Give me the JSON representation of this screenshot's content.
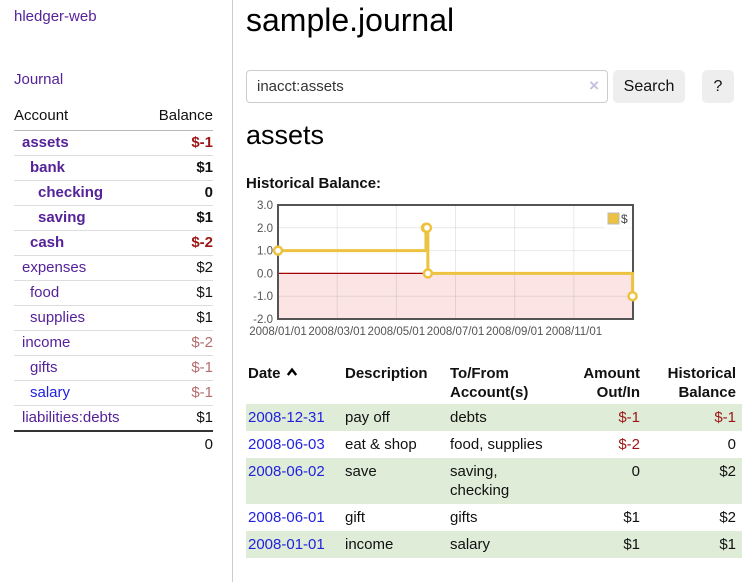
{
  "colors": {
    "purple": "#552299",
    "blue": "#2222dd",
    "negStrong": "#9d1616",
    "negMuted": "#b56c6c",
    "rowGreen": "#deecd8",
    "accent": "#edc240"
  },
  "sidebar": {
    "brand": "hledger-web",
    "journal_link": "Journal",
    "accounts_table": {
      "account_header": "Account",
      "balance_header": "Balance",
      "rows": [
        {
          "account": "assets",
          "level": 1,
          "bold": true,
          "link_color": "purple",
          "balance": "$-1",
          "balance_class": "neg bold"
        },
        {
          "account": "bank",
          "level": 2,
          "bold": true,
          "link_color": "purple",
          "balance": "$1",
          "balance_class": "bold"
        },
        {
          "account": "checking",
          "level": 3,
          "bold": true,
          "link_color": "purple",
          "balance": "0",
          "balance_class": "bold"
        },
        {
          "account": "saving",
          "level": 3,
          "bold": true,
          "link_color": "purple",
          "balance": "$1",
          "balance_class": "bold"
        },
        {
          "account": "cash",
          "level": 2,
          "bold": true,
          "link_color": "purple",
          "balance": "$-2",
          "balance_class": "neg bold"
        },
        {
          "account": "expenses",
          "level": 1,
          "bold": false,
          "link_color": "purple",
          "balance": "$2",
          "balance_class": ""
        },
        {
          "account": "food",
          "level": 2,
          "bold": false,
          "link_color": "purple",
          "balance": "$1",
          "balance_class": ""
        },
        {
          "account": "supplies",
          "level": 2,
          "bold": false,
          "link_color": "purple",
          "balance": "$1",
          "balance_class": ""
        },
        {
          "account": "income",
          "level": 1,
          "bold": false,
          "link_color": "purple",
          "balance": "$-2",
          "balance_class": "negm"
        },
        {
          "account": "gifts",
          "level": 2,
          "bold": false,
          "link_color": "purple",
          "balance": "$-1",
          "balance_class": "negm"
        },
        {
          "account": "salary",
          "level": 2,
          "bold": false,
          "link_color": "blue",
          "balance": "$-1",
          "balance_class": "negm"
        },
        {
          "account": "liabilities:debts",
          "level": 1,
          "bold": false,
          "link_color": "purple",
          "balance": "$1",
          "balance_class": ""
        }
      ],
      "total": "0"
    }
  },
  "main": {
    "title": "sample.journal",
    "search": {
      "value": "inacct:assets",
      "clear_icon": "×",
      "search_button": "Search",
      "help_button": "?"
    },
    "account_heading": "assets",
    "chart_heading": "Historical Balance:",
    "register": {
      "headers": [
        "Date",
        "Description",
        "To/From Account(s)",
        "Amount Out/In",
        "Historical Balance"
      ],
      "rows": [
        {
          "date": "2008-12-31",
          "description": "pay off",
          "accounts": "debts",
          "amount": "$-1",
          "amount_negative": true,
          "balance": "$-1",
          "balance_negative": true
        },
        {
          "date": "2008-06-03",
          "description": "eat & shop",
          "accounts": "food, supplies",
          "amount": "$-2",
          "amount_negative": true,
          "balance": "0",
          "balance_negative": false
        },
        {
          "date": "2008-06-02",
          "description": "save",
          "accounts": "saving,\nchecking",
          "amount": "0",
          "amount_negative": false,
          "balance": "$2",
          "balance_negative": false
        },
        {
          "date": "2008-06-01",
          "description": "gift",
          "accounts": "gifts",
          "amount": "$1",
          "amount_negative": false,
          "balance": "$2",
          "balance_negative": false
        },
        {
          "date": "2008-01-01",
          "description": "income",
          "accounts": "salary",
          "amount": "$1",
          "amount_negative": false,
          "balance": "$1",
          "balance_negative": false
        }
      ]
    }
  },
  "chart_data": {
    "type": "line",
    "title": "Historical Balance:",
    "step": true,
    "series": [
      {
        "name": "$",
        "color": "#edc240",
        "points": [
          [
            "2008-01-01",
            1
          ],
          [
            "2008-06-01",
            2
          ],
          [
            "2008-06-02",
            2
          ],
          [
            "2008-06-03",
            0
          ],
          [
            "2008-12-31",
            -1
          ]
        ]
      }
    ],
    "x_range": [
      "2008-01-01",
      "2009-01-01"
    ],
    "x_ticks": [
      {
        "date": "2008-01-01",
        "label": "2008/01/01"
      },
      {
        "date": "2008-03-01",
        "label": "2008/03/01"
      },
      {
        "date": "2008-05-01",
        "label": "2008/05/01"
      },
      {
        "date": "2008-07-01",
        "label": "2008/07/01"
      },
      {
        "date": "2008-09-01",
        "label": "2008/09/01"
      },
      {
        "date": "2008-11-01",
        "label": "2008/11/01"
      }
    ],
    "y_ticks": [
      {
        "v": 3,
        "label": "3.0"
      },
      {
        "v": 2,
        "label": "2.0"
      },
      {
        "v": 1,
        "label": "1.0"
      },
      {
        "v": 0,
        "label": "0.0"
      },
      {
        "v": -1,
        "label": "-1.0"
      },
      {
        "v": -2,
        "label": "-2.0"
      }
    ],
    "ylim": [
      -2,
      3
    ],
    "grid": true,
    "legend_position": "top-right",
    "plot_border_color": "#545454",
    "negative_region_fill": "#fce4e4",
    "zero_line_color": "#a40000"
  }
}
